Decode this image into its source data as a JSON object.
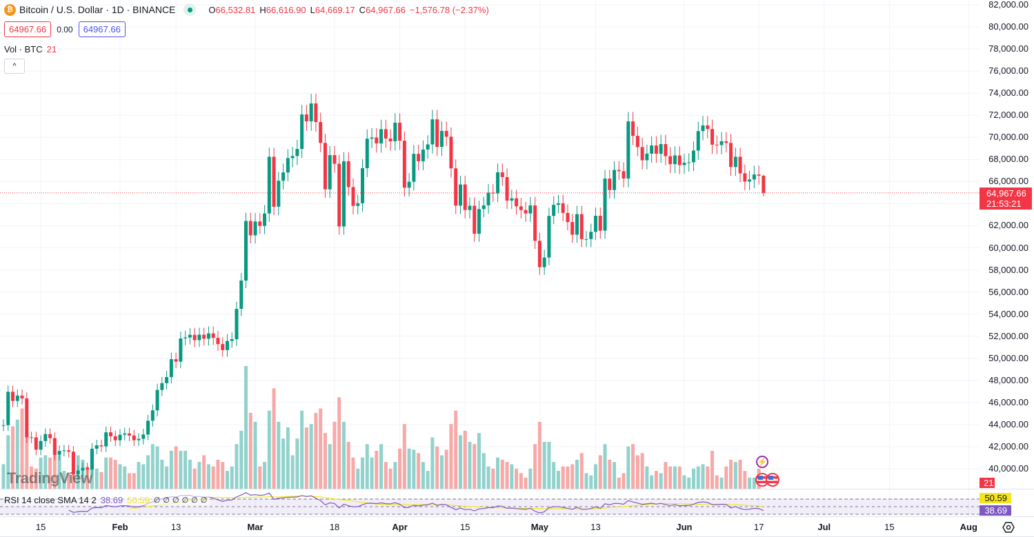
{
  "header": {
    "symbol_title": "Bitcoin / U.S. Dollar · 1D · BINANCE",
    "logo_letter": "₿",
    "ohlc": {
      "o_label": "O",
      "o": "66,532.81",
      "h_label": "H",
      "h": "66,616.90",
      "l_label": "L",
      "l": "64,669.17",
      "c_label": "C",
      "c": "64,967.66",
      "change": "−1,576.78 (−2.37%)"
    },
    "sell_price": "64967.66",
    "spread": "0.00",
    "buy_price": "64967.66",
    "volume_label": "Vol · BTC",
    "volume_value": "21",
    "collapse_glyph": "^"
  },
  "rsi": {
    "label": "RSI 14 close SMA 14 2",
    "rsi_value": "38.69",
    "sma_value": "50.59",
    "na_glyphs": [
      "∅",
      "∅",
      "∅",
      "∅",
      "∅",
      "∅"
    ],
    "levels": [
      70,
      50,
      30
    ]
  },
  "watermark": "TradingView",
  "price_axis": {
    "labels": [
      "82,000.00",
      "80,000.00",
      "78,000.00",
      "76,000.00",
      "74,000.00",
      "72,000.00",
      "70,000.00",
      "68,000.00",
      "66,000.00",
      "64,000.00",
      "62,000.00",
      "60,000.00",
      "58,000.00",
      "56,000.00",
      "54,000.00",
      "52,000.00",
      "50,000.00",
      "48,000.00",
      "46,000.00",
      "44,000.00",
      "42,000.00",
      "40,000.00"
    ],
    "current_price": "64,967.66",
    "countdown": "21:53:21",
    "volume_tag": "21",
    "rsi_sma_tag": "50.59",
    "rsi_tag": "38.69"
  },
  "time_axis": {
    "labels": [
      {
        "text": "15",
        "date": "2024-01-15",
        "bold": false
      },
      {
        "text": "Feb",
        "date": "2024-02-01",
        "bold": true
      },
      {
        "text": "13",
        "date": "2024-02-13",
        "bold": false
      },
      {
        "text": "Mar",
        "date": "2024-03-01",
        "bold": true
      },
      {
        "text": "18",
        "date": "2024-03-18",
        "bold": false
      },
      {
        "text": "Apr",
        "date": "2024-04-01",
        "bold": true
      },
      {
        "text": "15",
        "date": "2024-04-15",
        "bold": false
      },
      {
        "text": "May",
        "date": "2024-05-01",
        "bold": true
      },
      {
        "text": "13",
        "date": "2024-05-13",
        "bold": false
      },
      {
        "text": "Jun",
        "date": "2024-06-01",
        "bold": true
      },
      {
        "text": "17",
        "date": "2024-06-17",
        "bold": false
      },
      {
        "text": "Jul",
        "date": "2024-07-01",
        "bold": true
      },
      {
        "text": "15",
        "date": "2024-07-15",
        "bold": false
      },
      {
        "text": "Aug",
        "date": "2024-08-01",
        "bold": true
      }
    ]
  },
  "colors": {
    "up": "#089981",
    "down": "#f23645",
    "vol_up": "#92d2cc",
    "vol_down": "#f7a9a7",
    "rsi": "#7e57c2",
    "rsi_sma": "#f5e61a",
    "btc": "#f7931a"
  },
  "icons": {
    "events": [
      "lightning-icon",
      "us-flag-icon",
      "us-flag-icon"
    ],
    "settings": "settings-hexagon-icon"
  },
  "chart_data": {
    "type": "candlestick",
    "interval": "1D",
    "start_date": "2024-01-07",
    "end_date": "2024-06-18",
    "first_open": 43929,
    "ylim": [
      39000,
      82500
    ],
    "grid": true,
    "last": {
      "open": 66532.81,
      "high": 66616.9,
      "low": 64669.17,
      "close": 64967.66
    },
    "closes": [
      43943,
      46970,
      46139,
      46627,
      46368,
      42853,
      42842,
      41732,
      42511,
      43137,
      42776,
      41262,
      41618,
      41665,
      41545,
      39507,
      39845,
      40077,
      39933,
      41816,
      42120,
      42031,
      43300,
      42941,
      42580,
      43082,
      43200,
      43011,
      42582,
      42708,
      43098,
      44349,
      45288,
      47132,
      47751,
      48299,
      49917,
      49699,
      51795,
      51880,
      52124,
      51642,
      52137,
      51774,
      52258,
      51849,
      51288,
      50745,
      51571,
      51733,
      54476,
      57037,
      62432,
      61130,
      62387,
      61987,
      63113,
      68245,
      63724,
      66074,
      66823,
      68124,
      68313,
      68955,
      72078,
      71452,
      73072,
      71388,
      69499,
      65300,
      68393,
      67609,
      61937,
      67840,
      65501,
      63796,
      64037,
      67211,
      69880,
      69988,
      69455,
      70744,
      69892,
      69645,
      71333,
      69702,
      65446,
      65980,
      68508,
      67837,
      68896,
      69362,
      71631,
      69139,
      70587,
      70060,
      67195,
      63821,
      65738,
      63426,
      63811,
      61277,
      63512,
      63844,
      64994,
      64927,
      66837,
      66407,
      64277,
      64481,
      63755,
      63419,
      63113,
      63841,
      60636,
      58254,
      59123,
      62889,
      63891,
      64031,
      63161,
      62334,
      61187,
      63049,
      60793,
      60793,
      61448,
      62901,
      61552,
      66267,
      65231,
      67051,
      66940,
      66278,
      71446,
      70136,
      69122,
      67929,
      68526,
      69265,
      68518,
      69394,
      68296,
      67578,
      68364,
      67491,
      67706,
      67751,
      68804,
      70567,
      71082,
      70757,
      69342,
      69305,
      69648,
      69500,
      67321,
      68243,
      66747,
      66006,
      66191,
      66639,
      66532.81,
      64967.66
    ],
    "volumes_k_btc": [
      22,
      48,
      56,
      62,
      72,
      50,
      20,
      18,
      28,
      30,
      28,
      35,
      30,
      16,
      14,
      30,
      30,
      26,
      20,
      30,
      18,
      15,
      28,
      28,
      26,
      22,
      20,
      14,
      14,
      24,
      22,
      30,
      40,
      38,
      26,
      20,
      34,
      38,
      34,
      34,
      26,
      18,
      24,
      30,
      22,
      20,
      26,
      24,
      16,
      20,
      40,
      52,
      110,
      68,
      60,
      20,
      24,
      70,
      90,
      60,
      45,
      55,
      30,
      45,
      70,
      55,
      58,
      68,
      72,
      50,
      40,
      60,
      82,
      60,
      42,
      28,
      18,
      28,
      40,
      28,
      34,
      40,
      24,
      18,
      24,
      36,
      58,
      36,
      35,
      32,
      24,
      16,
      46,
      38,
      30,
      35,
      58,
      70,
      48,
      52,
      42,
      40,
      50,
      32,
      20,
      18,
      28,
      26,
      24,
      22,
      18,
      14,
      10,
      18,
      40,
      60,
      42,
      42,
      24,
      16,
      20,
      20,
      22,
      26,
      32,
      14,
      12,
      22,
      30,
      40,
      26,
      24,
      10,
      14,
      38,
      40,
      30,
      32,
      20,
      12,
      16,
      14,
      24,
      20,
      20,
      20,
      12,
      10,
      18,
      20,
      22,
      20,
      34,
      12,
      10,
      20,
      26,
      24,
      26,
      16,
      10,
      10,
      18,
      0.021
    ]
  }
}
